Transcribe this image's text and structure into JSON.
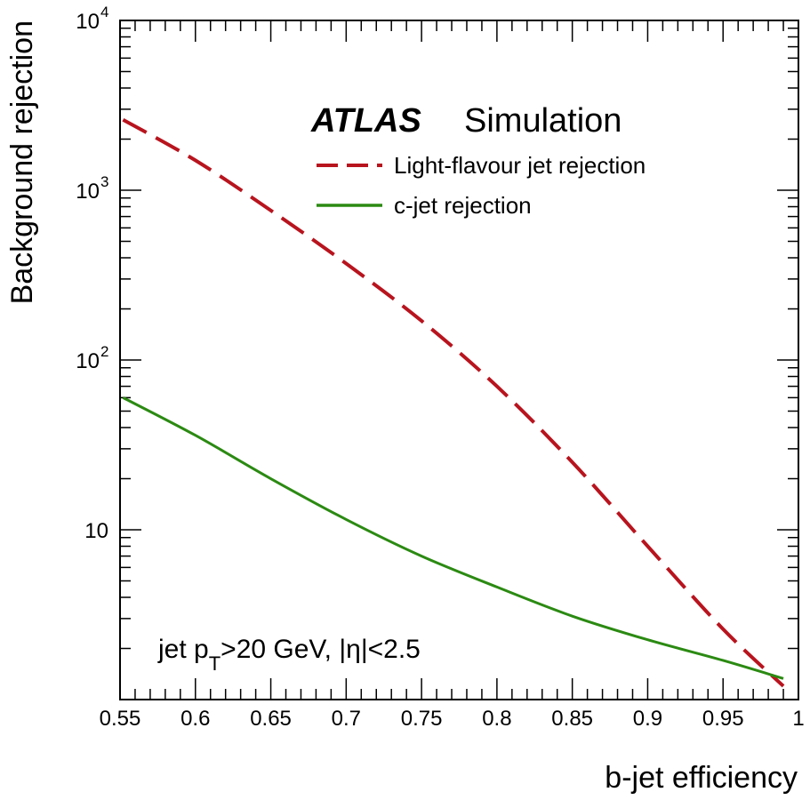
{
  "chart_data": {
    "type": "line",
    "xlabel": "b-jet efficiency",
    "ylabel": "Background rejection",
    "xlim": [
      0.55,
      1.0
    ],
    "ylim": [
      1.0,
      10000
    ],
    "yscale": "log",
    "grid": false,
    "legend_position": "top-right",
    "x_ticks": [
      0.55,
      0.6,
      0.65,
      0.7,
      0.75,
      0.8,
      0.85,
      0.9,
      0.95,
      1.0
    ],
    "x_tick_labels": [
      "0.55",
      "0.6",
      "0.65",
      "0.7",
      "0.75",
      "0.8",
      "0.85",
      "0.9",
      "0.95",
      "1"
    ],
    "y_ticks": [
      10,
      100,
      1000,
      10000
    ],
    "y_tick_labels": [
      {
        "base": "10",
        "exp": ""
      },
      {
        "base": "10",
        "exp": "2"
      },
      {
        "base": "10",
        "exp": "3"
      },
      {
        "base": "10",
        "exp": "4"
      }
    ],
    "experiment_label": "ATLAS",
    "experiment_sublabel": "Simulation",
    "annotation": {
      "prefix": "jet p",
      "sub": "T",
      "suffix": ">20 GeV, |η|<2.5"
    },
    "series": [
      {
        "name": "Light-flavour jet rejection",
        "color": "#b8141e",
        "style": "dashed",
        "x": [
          0.552,
          0.6,
          0.65,
          0.7,
          0.75,
          0.8,
          0.85,
          0.9,
          0.95,
          0.99
        ],
        "y": [
          2600,
          1500,
          760,
          370,
          170,
          70,
          25,
          8,
          2.6,
          1.2
        ]
      },
      {
        "name": "c-jet rejection",
        "color": "#2b8a12",
        "style": "solid",
        "x": [
          0.552,
          0.6,
          0.65,
          0.7,
          0.75,
          0.8,
          0.85,
          0.9,
          0.95,
          0.99
        ],
        "y": [
          60,
          36,
          20,
          11.5,
          7,
          4.6,
          3.1,
          2.25,
          1.7,
          1.33
        ]
      }
    ]
  }
}
